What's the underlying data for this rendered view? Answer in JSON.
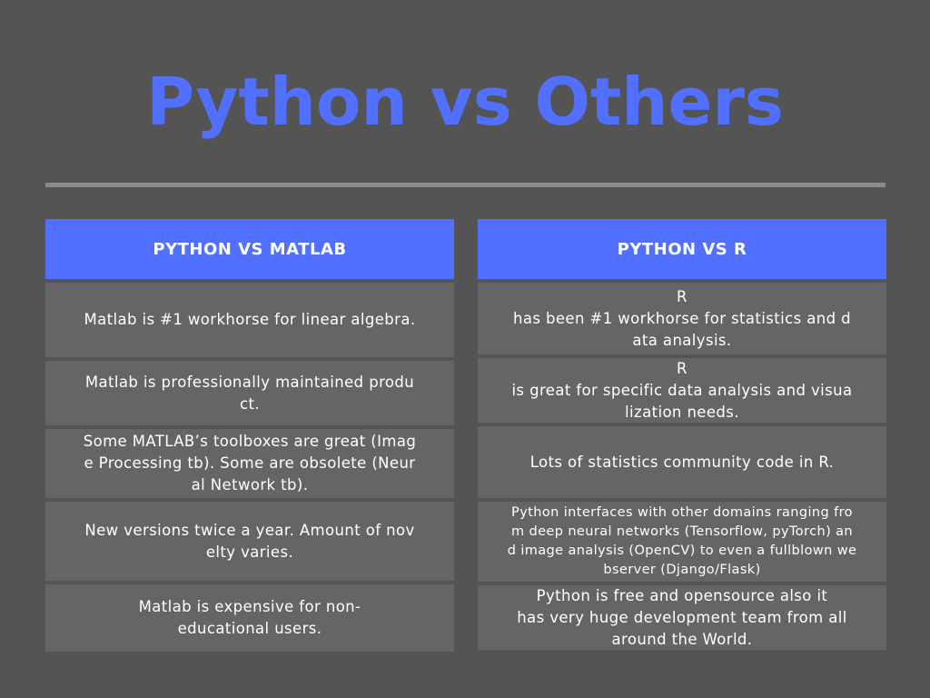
{
  "title": "Python vs Others",
  "left_column": {
    "header": "PYTHON VS MATLAB",
    "rows": [
      "Matlab is #1 workhorse for linear algebra.",
      "Matlab is professionally maintained produ\nct.",
      "Some MATLAB’s toolboxes are great (Imag\ne Processing tb). Some are obsolete (Neur\nal Network tb).",
      "New versions twice a year. Amount of nov\nelty varies.",
      "Matlab is expensive for non-\neducational users."
    ]
  },
  "right_column": {
    "header": "PYTHON VS R",
    "rows": [
      "R\nhas been #1 workhorse for statistics and d\nata analysis.",
      "R\nis great for specific data analysis and visua\nlization needs.",
      "Lots of statistics community code in R.",
      "Python interfaces with other domains ranging fro\nm deep neural networks (Tensorflow, pyTorch) an\nd image analysis (OpenCV) to even a fullblown we\nbserver (Django/Flask)",
      "Python is free and opensource also it\nhas very huge development team from all\naround the World."
    ]
  },
  "colors": {
    "background": "#545454",
    "accent": "#5170ff",
    "cell": "#656565",
    "rule": "#8b8b8b",
    "text": "#ffffff"
  }
}
